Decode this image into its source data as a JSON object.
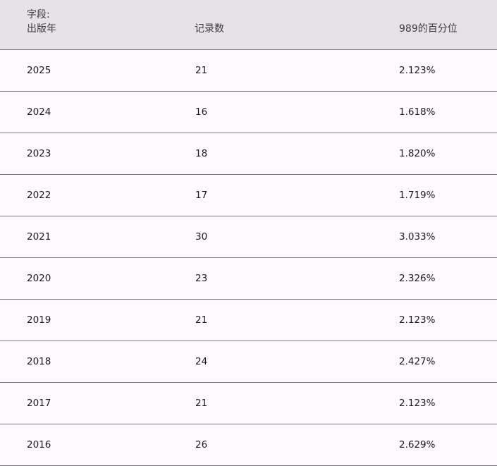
{
  "table": {
    "columns": [
      {
        "prefix": "字段:",
        "label": "出版年"
      },
      {
        "label": "记录数"
      },
      {
        "label": "989的百分位"
      }
    ],
    "rows": [
      [
        "2025",
        "21",
        "2.123%"
      ],
      [
        "2024",
        "16",
        "1.618%"
      ],
      [
        "2023",
        "18",
        "1.820%"
      ],
      [
        "2022",
        "17",
        "1.719%"
      ],
      [
        "2021",
        "30",
        "3.033%"
      ],
      [
        "2020",
        "23",
        "2.326%"
      ],
      [
        "2019",
        "21",
        "2.123%"
      ],
      [
        "2018",
        "24",
        "2.427%"
      ],
      [
        "2017",
        "21",
        "2.123%"
      ],
      [
        "2016",
        "26",
        "2.629%"
      ]
    ]
  },
  "colors": {
    "header_bg": "#e5e3e8",
    "body_bg": "#fdfaff",
    "divider": "#79747e"
  }
}
